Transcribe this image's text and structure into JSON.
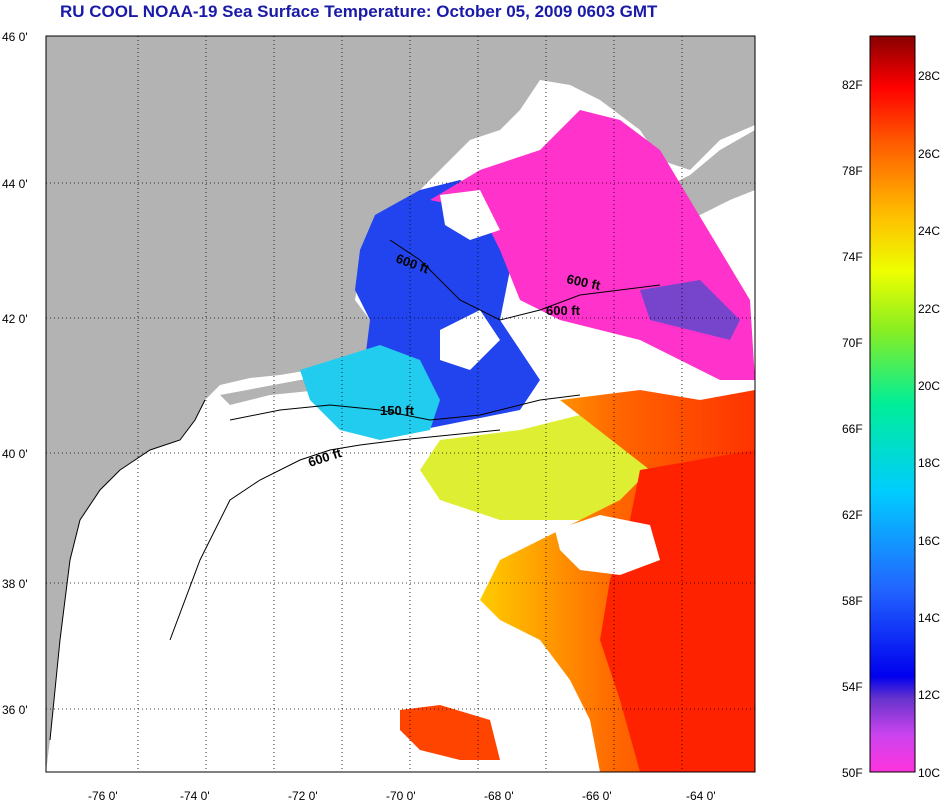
{
  "title": "RU COOL  NOAA-19  Sea Surface Temperature:  October 05, 2009 0603 GMT",
  "lat_labels": [
    "46 0'",
    "44 0'",
    "42 0'",
    "40 0'",
    "38 0'",
    "36 0'"
  ],
  "lon_labels": [
    "-76 0'",
    "-74 0'",
    "-72 0'",
    "-70 0'",
    "-68 0'",
    "-66 0'",
    "-64 0'"
  ],
  "contours": [
    {
      "label": "600 ft"
    },
    {
      "label": "600 ft"
    },
    {
      "label": "600 ft"
    },
    {
      "label": "150 ft"
    },
    {
      "label": "600 ft"
    }
  ],
  "colorbar": {
    "fahrenheit": [
      "82F",
      "78F",
      "74F",
      "70F",
      "66F",
      "62F",
      "58F",
      "54F",
      "50F"
    ],
    "celsius": [
      "28C",
      "26C",
      "24C",
      "22C",
      "20C",
      "18C",
      "16C",
      "14C",
      "12C",
      "10C"
    ]
  },
  "colors": {
    "land": "#b3b3b3",
    "cloud": "#ffffff",
    "title": "#1a1aa8"
  }
}
